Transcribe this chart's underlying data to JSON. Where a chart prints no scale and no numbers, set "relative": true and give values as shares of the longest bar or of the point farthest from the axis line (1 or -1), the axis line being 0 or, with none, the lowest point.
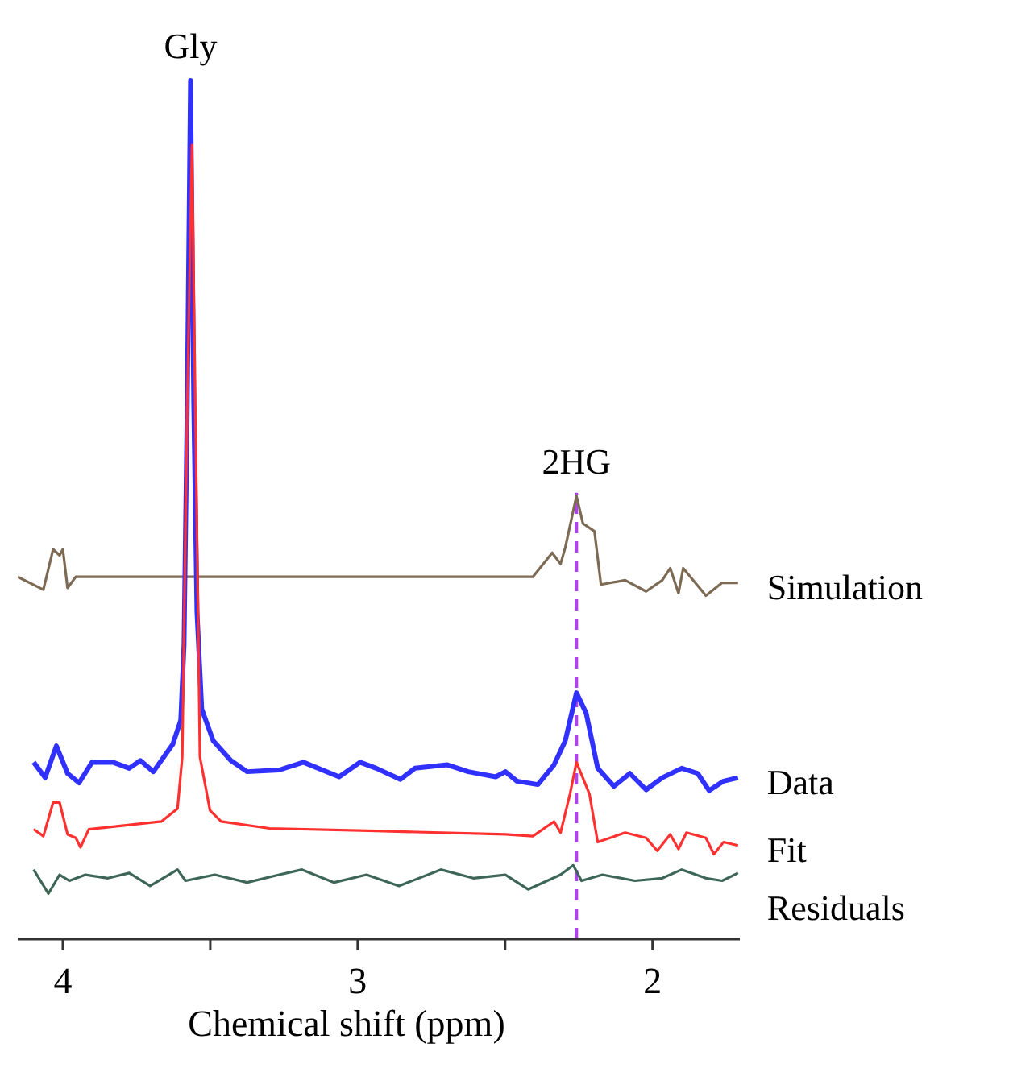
{
  "chart_data": {
    "type": "line",
    "relative": true,
    "xlabel": "Chemical shift (ppm)",
    "xlim": [
      4.153,
      1.704
    ],
    "xticks": [
      4,
      {
        "value": 3.5,
        "label": null
      },
      3,
      {
        "value": 2.5,
        "label": null
      },
      2
    ],
    "grid": false,
    "legend": false,
    "marker": "none",
    "line_style": "solid",
    "tick_labels": "x",
    "annotations": [
      {
        "text": "Gly",
        "x": 3.567,
        "y": 1.0
      },
      {
        "text": "2HG",
        "x": 2.258,
        "y": 0.516
      }
    ],
    "ref_lines": [
      {
        "axis": "x",
        "value": 2.258,
        "color": "#b040f0",
        "line_style": "dashed"
      }
    ],
    "series": [
      {
        "name": "Simulation",
        "color": "#7d6a55",
        "x": [
          4.153,
          4.066,
          4.033,
          4.011,
          4.0,
          3.984,
          3.956,
          3.5,
          3.0,
          2.5,
          2.406,
          2.34,
          2.334,
          2.312,
          2.296,
          2.258,
          2.236,
          2.197,
          2.175,
          2.093,
          2.022,
          1.967,
          1.94,
          1.912,
          1.896,
          1.819,
          1.764,
          1.71
        ],
        "values": [
          0.422,
          0.407,
          0.454,
          0.447,
          0.454,
          0.409,
          0.422,
          0.422,
          0.422,
          0.422,
          0.422,
          0.45,
          0.447,
          0.437,
          0.456,
          0.516,
          0.484,
          0.475,
          0.413,
          0.418,
          0.405,
          0.418,
          0.432,
          0.403,
          0.432,
          0.4,
          0.415,
          0.415
        ]
      },
      {
        "name": "Data",
        "color": "#3030ff",
        "x": [
          4.099,
          4.06,
          4.022,
          3.984,
          3.945,
          3.901,
          3.83,
          3.775,
          3.737,
          3.693,
          3.627,
          3.6,
          3.589,
          3.578,
          3.567,
          3.556,
          3.545,
          3.529,
          3.49,
          3.43,
          3.375,
          3.266,
          3.184,
          3.063,
          2.992,
          2.937,
          2.855,
          2.806,
          2.696,
          2.625,
          2.532,
          2.499,
          2.46,
          2.389,
          2.334,
          2.296,
          2.258,
          2.225,
          2.186,
          2.131,
          2.077,
          2.022,
          1.967,
          1.901,
          1.847,
          1.808,
          1.759,
          1.71
        ],
        "values": [
          0.206,
          0.188,
          0.225,
          0.193,
          0.182,
          0.206,
          0.206,
          0.199,
          0.208,
          0.195,
          0.227,
          0.255,
          0.343,
          0.625,
          1.0,
          0.625,
          0.381,
          0.268,
          0.231,
          0.208,
          0.195,
          0.197,
          0.206,
          0.189,
          0.206,
          0.199,
          0.186,
          0.199,
          0.203,
          0.195,
          0.189,
          0.195,
          0.184,
          0.18,
          0.203,
          0.231,
          0.287,
          0.263,
          0.199,
          0.178,
          0.193,
          0.174,
          0.188,
          0.199,
          0.193,
          0.173,
          0.184,
          0.188
        ]
      },
      {
        "name": "Fit",
        "color": "#ff3030",
        "x": [
          4.099,
          4.066,
          4.033,
          4.011,
          3.984,
          3.956,
          3.94,
          3.912,
          3.666,
          3.611,
          3.595,
          3.578,
          3.562,
          3.551,
          3.535,
          3.501,
          3.463,
          3.299,
          2.937,
          2.499,
          2.406,
          2.334,
          2.312,
          2.28,
          2.258,
          2.214,
          2.186,
          2.093,
          2.022,
          1.984,
          1.94,
          1.912,
          1.885,
          1.819,
          1.792,
          1.759,
          1.71
        ],
        "values": [
          0.128,
          0.12,
          0.159,
          0.159,
          0.122,
          0.118,
          0.107,
          0.128,
          0.137,
          0.152,
          0.212,
          0.625,
          0.925,
          0.625,
          0.212,
          0.15,
          0.137,
          0.129,
          0.126,
          0.122,
          0.12,
          0.137,
          0.124,
          0.169,
          0.206,
          0.169,
          0.113,
          0.124,
          0.118,
          0.103,
          0.122,
          0.105,
          0.124,
          0.118,
          0.099,
          0.113,
          0.109
        ]
      },
      {
        "name": "Residuals",
        "color": "#3d6657",
        "x": [
          4.099,
          4.049,
          4.011,
          3.978,
          3.923,
          3.847,
          3.775,
          3.704,
          3.611,
          3.584,
          3.485,
          3.375,
          3.266,
          3.189,
          3.08,
          2.97,
          2.86,
          2.718,
          2.608,
          2.499,
          2.422,
          2.312,
          2.269,
          2.241,
          2.17,
          2.06,
          1.967,
          1.901,
          1.819,
          1.764,
          1.71
        ],
        "values": [
          0.081,
          0.053,
          0.075,
          0.068,
          0.075,
          0.071,
          0.077,
          0.062,
          0.081,
          0.068,
          0.075,
          0.066,
          0.075,
          0.081,
          0.066,
          0.075,
          0.062,
          0.081,
          0.071,
          0.075,
          0.058,
          0.075,
          0.086,
          0.068,
          0.075,
          0.068,
          0.071,
          0.081,
          0.071,
          0.068,
          0.077
        ]
      }
    ]
  }
}
